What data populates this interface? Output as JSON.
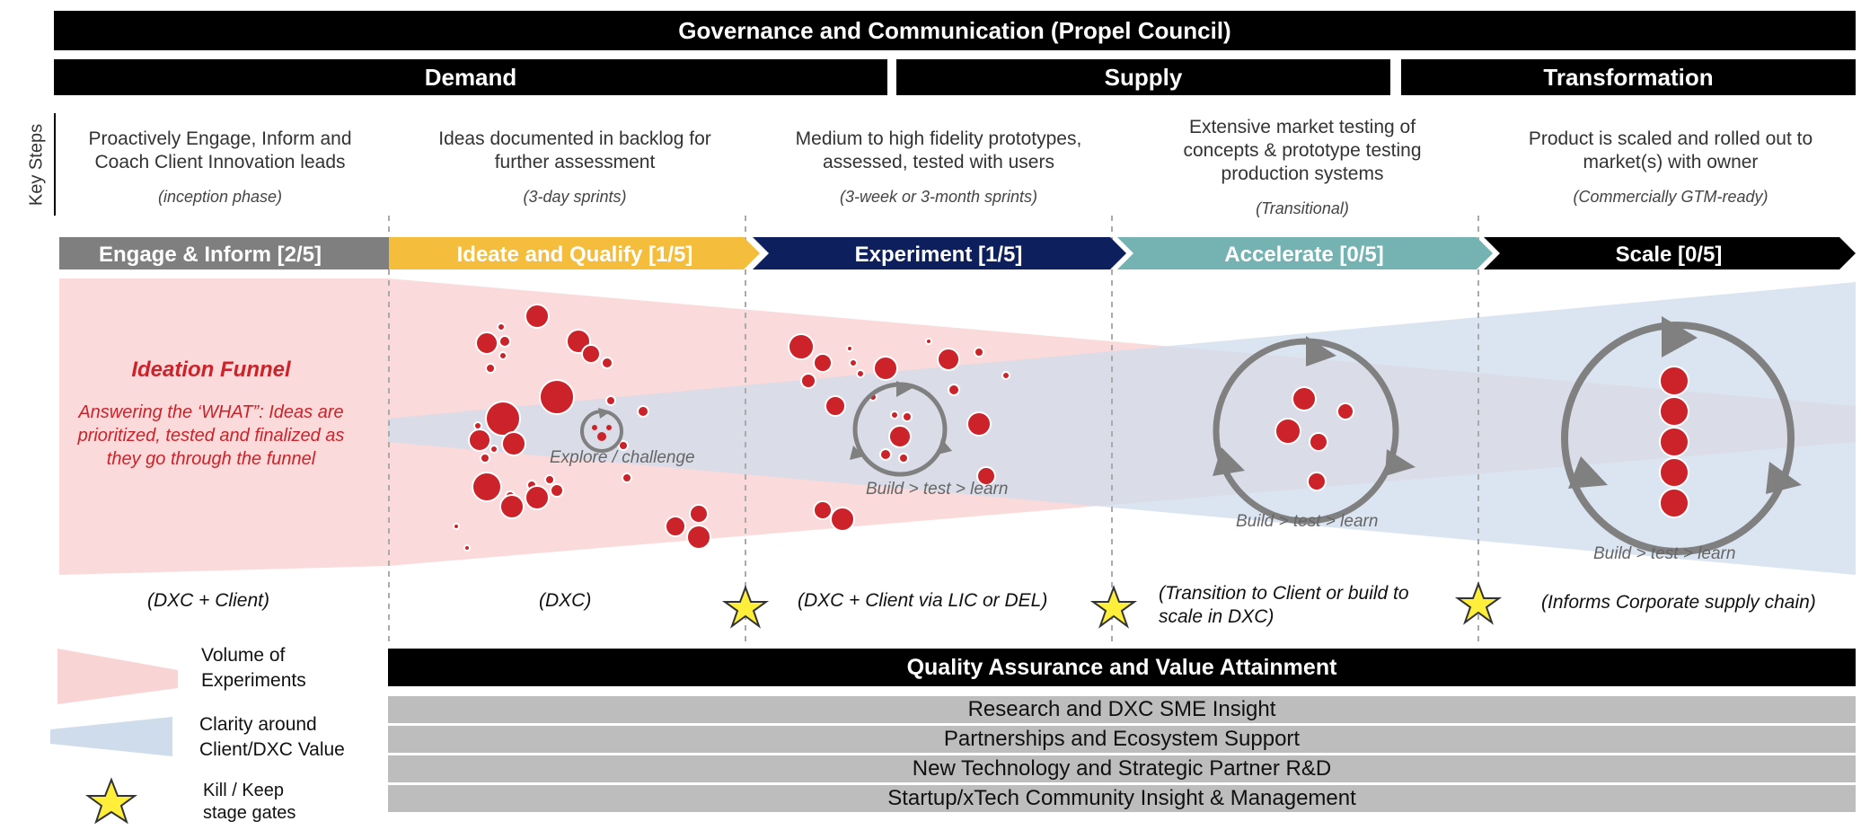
{
  "top_bar": "Governance and Communication (Propel Council)",
  "section_bars": {
    "demand": "Demand",
    "supply": "Supply",
    "transformation": "Transformation"
  },
  "key_steps_label": "Key Steps",
  "steps": [
    {
      "description": "Proactively Engage, Inform and Coach Client Innovation leads",
      "note": "(inception phase)",
      "chevron": "Engage & Inform [2/5]",
      "color": "#7f7f7f",
      "owner": "(DXC + Client)"
    },
    {
      "description": "Ideas documented in backlog for further assessment",
      "note": "(3-day sprints)",
      "chevron": "Ideate and Qualify [1/5]",
      "color": "#f5bd3c",
      "owner": "(DXC)"
    },
    {
      "description": "Medium to high fidelity prototypes, assessed, tested with users",
      "note": "(3-week or 3-month sprints)",
      "chevron": "Experiment [1/5]",
      "color": "#0d1f5c",
      "owner": "(DXC + Client via LIC or DEL)"
    },
    {
      "description": "Extensive market testing of concepts & prototype testing production systems",
      "note": "(Transitional)",
      "chevron": "Accelerate [0/5]",
      "color": "#74b3b2",
      "owner": "(Transition to Client or build to scale in DXC)"
    },
    {
      "description": "Product is scaled and rolled out to market(s) with owner",
      "note": "(Commercially GTM-ready)",
      "chevron": "Scale [0/5]",
      "color": "#000000",
      "owner": "(Informs Corporate supply chain)"
    }
  ],
  "funnel": {
    "title": "Ideation Funnel",
    "subtitle": "Answering the ‘WHAT”: Ideas are prioritized, tested and finalized as they go through the funnel"
  },
  "cycle_labels": {
    "explore": "Explore / challenge",
    "build1": "Build > test > learn",
    "build2": "Build > test > learn",
    "build3": "Build > test > learn"
  },
  "qa_bar": "Quality Assurance and Value Attainment",
  "support_rows": [
    "Research and DXC SME Insight",
    "Partnerships and Ecosystem Support",
    "New Technology and Strategic Partner R&D",
    "Startup/xTech Community Insight & Management"
  ],
  "legend": {
    "volume": "Volume of Experiments",
    "clarity": "Clarity around Client/DXC Value",
    "gates": "Kill / Keep stage gates"
  },
  "colors": {
    "funnel_pink": "#f9d4d4",
    "clarity_blue": "#cfdcec",
    "idea_red": "#cc2229",
    "cycle_gray": "#808080",
    "star_yellow": "#ffef3a"
  }
}
